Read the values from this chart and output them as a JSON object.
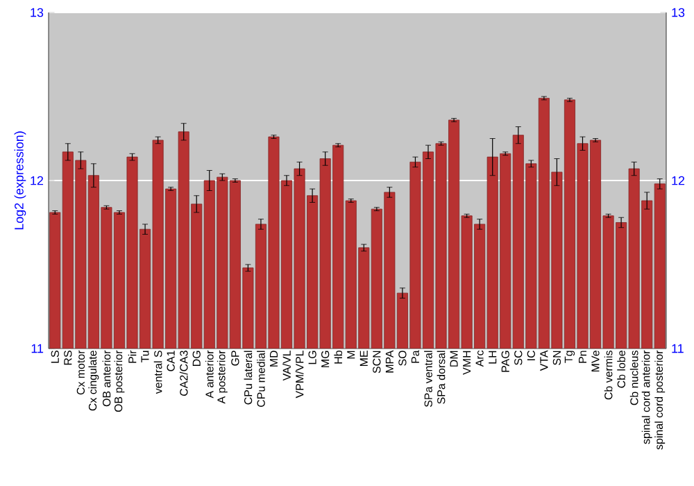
{
  "chart_data": {
    "type": "bar",
    "ylabel": "Log2 (expression)",
    "categories": [
      "LS",
      "RS",
      "Cx motor",
      "Cx cingulate",
      "OB anterior",
      "OB posterior",
      "Pir",
      "Tu",
      "ventral S",
      "CA1",
      "CA2/CA3",
      "DG",
      "A anterior",
      "A posterior",
      "GP",
      "CPu lateral",
      "CPu medial",
      "MD",
      "VA/VL",
      "VPM/VPL",
      "LG",
      "MG",
      "Hb",
      "M",
      "ME",
      "SCN",
      "MPA",
      "SO",
      "Pa",
      "SPa ventral",
      "SPa dorsal",
      "DM",
      "VMH",
      "Arc",
      "LH",
      "PAG",
      "SC",
      "IC",
      "VTA",
      "SN",
      "Tg",
      "Pn",
      "MVe",
      "Cb vermis",
      "Cb lobe",
      "Cb nucleus",
      "spinal cord anterior",
      "spinal cord posterior"
    ],
    "values": [
      11.81,
      12.17,
      12.12,
      12.03,
      11.84,
      11.81,
      12.14,
      11.71,
      12.24,
      11.95,
      12.29,
      11.86,
      12.0,
      12.02,
      12.0,
      11.48,
      11.74,
      12.26,
      12.0,
      12.07,
      11.91,
      12.13,
      12.21,
      11.88,
      11.6,
      11.83,
      11.93,
      11.33,
      12.11,
      12.17,
      12.22,
      12.36,
      11.79,
      11.74,
      12.14,
      12.16,
      12.27,
      12.1,
      12.49,
      12.05,
      12.48,
      12.22,
      12.24,
      11.79,
      11.75,
      12.07,
      11.88,
      11.98
    ],
    "errors": [
      0.01,
      0.05,
      0.05,
      0.07,
      0.01,
      0.01,
      0.02,
      0.03,
      0.02,
      0.01,
      0.05,
      0.05,
      0.06,
      0.02,
      0.01,
      0.02,
      0.03,
      0.01,
      0.03,
      0.04,
      0.04,
      0.04,
      0.01,
      0.01,
      0.02,
      0.01,
      0.03,
      0.03,
      0.03,
      0.04,
      0.01,
      0.01,
      0.01,
      0.03,
      0.11,
      0.01,
      0.05,
      0.02,
      0.01,
      0.08,
      0.01,
      0.04,
      0.01,
      0.01,
      0.03,
      0.04,
      0.05,
      0.03
    ],
    "color": "#b83232",
    "ylim": [
      11,
      13
    ],
    "yticks": [
      11,
      12,
      13
    ],
    "y2lim": [
      11,
      13
    ],
    "y2ticks": [
      11,
      12,
      13
    ],
    "grid": "y"
  }
}
